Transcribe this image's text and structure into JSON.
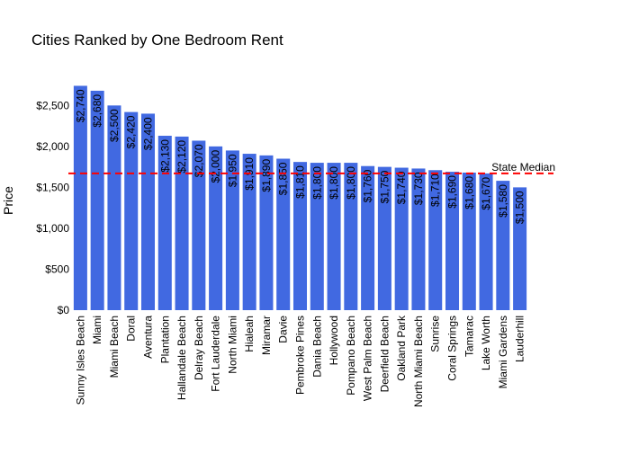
{
  "chart_data": {
    "type": "bar",
    "title": "Cities Ranked by One Bedroom Rent",
    "xlabel": "",
    "ylabel": "Price",
    "ylim": [
      0,
      2800
    ],
    "yticks": [
      0,
      500,
      1000,
      1500,
      2000,
      2500
    ],
    "ytick_labels": [
      "$0",
      "$500",
      "$1,000",
      "$1,500",
      "$2,000",
      "$2,500"
    ],
    "categories": [
      "Sunny Isles Beach",
      "Miami",
      "Miami Beach",
      "Doral",
      "Aventura",
      "Plantation",
      "Hallandale Beach",
      "Delray Beach",
      "Fort Lauderdale",
      "North Miami",
      "Hialeah",
      "Miramar",
      "Davie",
      "Pembroke Pines",
      "Dania Beach",
      "Hollywood",
      "Pompano Beach",
      "West Palm Beach",
      "Deerfield Beach",
      "Oakland Park",
      "North Miami Beach",
      "Sunrise",
      "Coral Springs",
      "Tamarac",
      "Lake Worth",
      "Miami Gardens",
      "Lauderhill"
    ],
    "values": [
      2740,
      2680,
      2500,
      2420,
      2400,
      2130,
      2120,
      2070,
      2000,
      1950,
      1910,
      1890,
      1850,
      1810,
      1800,
      1800,
      1800,
      1760,
      1750,
      1740,
      1730,
      1710,
      1690,
      1680,
      1670,
      1580,
      1500
    ],
    "data_labels": [
      "$2,740",
      "$2,680",
      "$2,500",
      "$2,420",
      "$2,400",
      "$2,130",
      "$2,120",
      "$2,070",
      "$2,000",
      "$1,950",
      "$1,910",
      "$1,890",
      "$1,850",
      "$1,810",
      "$1,800",
      "$1,800",
      "$1,800",
      "$1,760",
      "$1,750",
      "$1,740",
      "$1,730",
      "$1,710",
      "$1,690",
      "$1,680",
      "$1,670",
      "$1,580",
      "$1,500"
    ],
    "reference_line": {
      "label": "State Median",
      "value": 1670,
      "color": "#ff0000",
      "style": "dashed"
    },
    "bar_color": "#4169e1",
    "grid": false,
    "legend": "none"
  }
}
